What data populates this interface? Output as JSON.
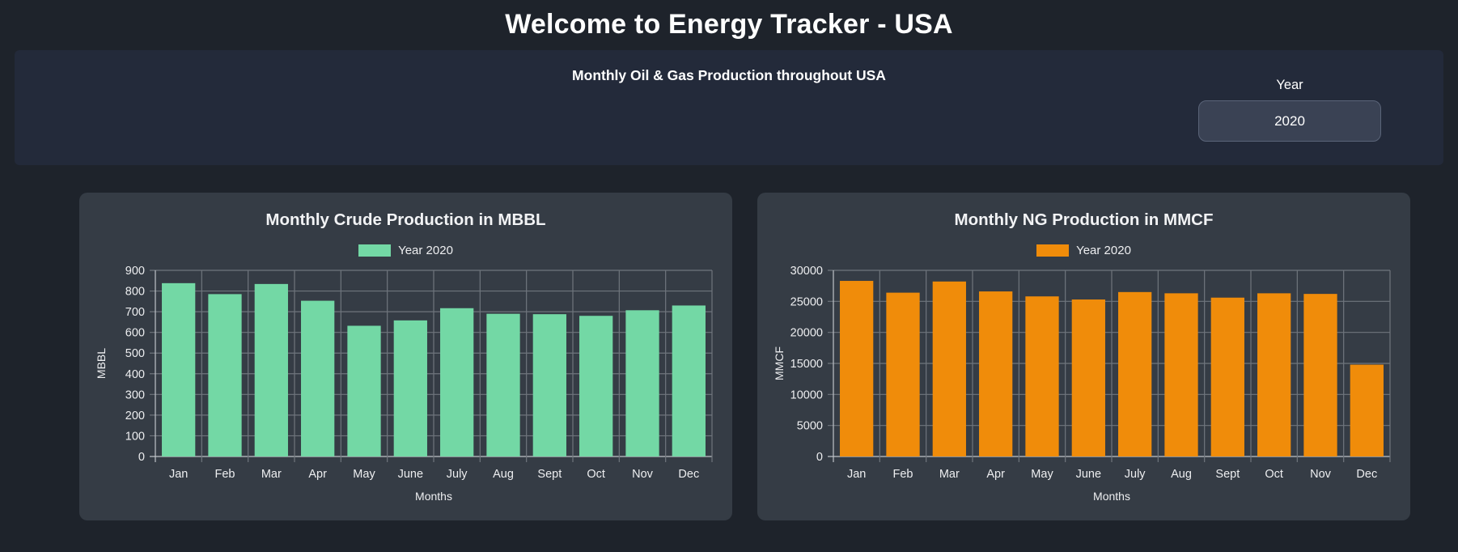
{
  "header": {
    "title": "Welcome to Energy Tracker - USA"
  },
  "banner": {
    "subtitle": "Monthly Oil & Gas Production throughout USA",
    "year_label": "Year",
    "year_value": "2020"
  },
  "colors": {
    "page_background": "#1E232B",
    "banner_background": "#232A3A",
    "panel_background": "#353C45",
    "crude_bar": "#73D8A5",
    "ng_bar": "#F08C0A",
    "gridline": "#6F757D",
    "axis_line": "#BFC3C8",
    "tick_text": "#EDEEF0"
  },
  "chart_data": [
    {
      "type": "bar",
      "title": "Monthly Crude Production in MBBL",
      "legend": "Year 2020",
      "color": "#73D8A5",
      "categories": [
        "Jan",
        "Feb",
        "Mar",
        "Apr",
        "May",
        "June",
        "July",
        "Aug",
        "Sept",
        "Oct",
        "Nov",
        "Dec"
      ],
      "values": [
        838,
        785,
        834,
        753,
        632,
        658,
        717,
        690,
        688,
        680,
        707,
        730
      ],
      "xlabel": "Months",
      "ylabel": "MBBL",
      "ylim": [
        0,
        900
      ],
      "ytick_step": 100,
      "grid": true,
      "legend_position": "top"
    },
    {
      "type": "bar",
      "title": "Monthly NG Production in MMCF",
      "legend": "Year 2020",
      "color": "#F08C0A",
      "categories": [
        "Jan",
        "Feb",
        "Mar",
        "Apr",
        "May",
        "June",
        "July",
        "Aug",
        "Sept",
        "Oct",
        "Nov",
        "Dec"
      ],
      "values": [
        28300,
        26400,
        28200,
        26600,
        25800,
        25300,
        26500,
        26300,
        25600,
        26300,
        26200,
        14800
      ],
      "xlabel": "Months",
      "ylabel": "MMCF",
      "ylim": [
        0,
        30000
      ],
      "ytick_step": 5000,
      "grid": true,
      "legend_position": "top"
    }
  ]
}
